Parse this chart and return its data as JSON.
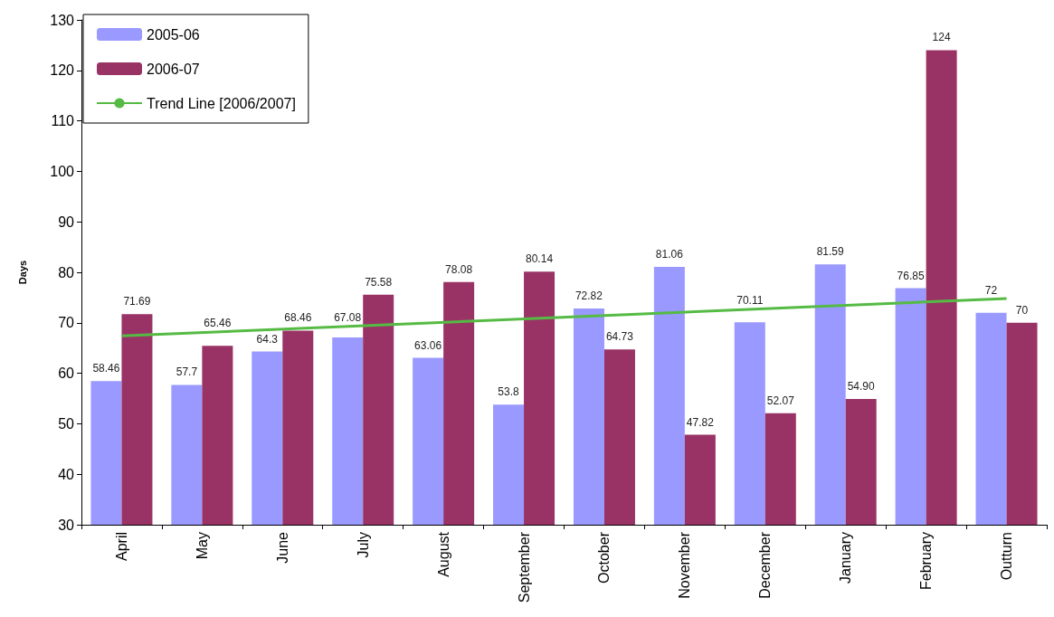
{
  "chart_data": {
    "type": "bar",
    "ylabel": "Days",
    "categories": [
      "April",
      "May",
      "June",
      "July",
      "August",
      "September",
      "October",
      "November",
      "December",
      "January",
      "February",
      "Outturn"
    ],
    "series": [
      {
        "name": "2005-06",
        "color": "#9999ff",
        "values": [
          58.46,
          57.7,
          64.3,
          67.08,
          63.06,
          53.8,
          72.82,
          81.06,
          70.11,
          81.59,
          76.85,
          72
        ],
        "value_labels": [
          "58.46",
          "57.7",
          "64.3",
          "67.08",
          "63.06",
          "53.8",
          "72.82",
          "81.06",
          "70.11",
          "81.59",
          "76.85",
          "72"
        ]
      },
      {
        "name": "2006-07",
        "color": "#993366",
        "values": [
          71.69,
          65.46,
          68.46,
          75.58,
          78.08,
          80.14,
          64.73,
          47.82,
          52.07,
          54.9,
          124,
          70
        ],
        "value_labels": [
          "71.69",
          "65.46",
          "68.46",
          "75.58",
          "78.08",
          "80.14",
          "64.73",
          "47.82",
          "52.07",
          "54.90",
          "124",
          "70"
        ]
      },
      {
        "name": "Trend Line [2006/2007]",
        "type": "line",
        "color": "#55bb44",
        "x": [
          "April",
          "Outturn"
        ],
        "values": [
          67.4,
          74.8
        ],
        "marker": "none",
        "line_style": "solid"
      }
    ],
    "ylim": [
      30,
      130
    ],
    "yticks": [
      30,
      40,
      50,
      60,
      70,
      80,
      90,
      100,
      110,
      120,
      130
    ],
    "grid": false,
    "legend": "top left"
  }
}
